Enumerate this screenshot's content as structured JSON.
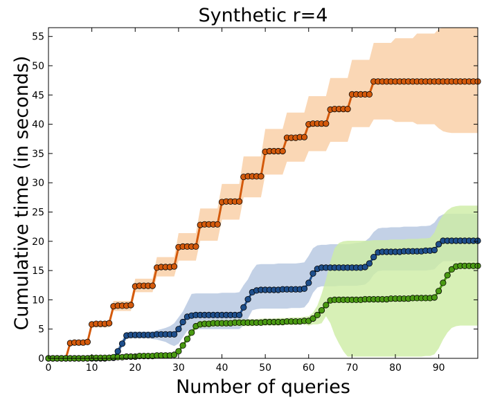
{
  "chart_data": {
    "type": "line",
    "title": "Synthetic r=4",
    "xlabel": "Number of queries",
    "ylabel": "Cumulative time (in seconds)",
    "xlim": [
      0,
      99
    ],
    "ylim": [
      0,
      56.5
    ],
    "xticks": [
      0,
      10,
      20,
      30,
      40,
      50,
      60,
      70,
      80,
      90
    ],
    "yticks": [
      0,
      5,
      10,
      15,
      20,
      25,
      30,
      35,
      40,
      45,
      50,
      55
    ],
    "grid": false,
    "x": [
      0,
      1,
      2,
      3,
      4,
      5,
      6,
      7,
      8,
      9,
      10,
      11,
      12,
      13,
      14,
      15,
      16,
      17,
      18,
      19,
      20,
      21,
      22,
      23,
      24,
      25,
      26,
      27,
      28,
      29,
      30,
      31,
      32,
      33,
      34,
      35,
      36,
      37,
      38,
      39,
      40,
      41,
      42,
      43,
      44,
      45,
      46,
      47,
      48,
      49,
      50,
      51,
      52,
      53,
      54,
      55,
      56,
      57,
      58,
      59,
      60,
      61,
      62,
      63,
      64,
      65,
      66,
      67,
      68,
      69,
      70,
      71,
      72,
      73,
      74,
      75,
      76,
      77,
      78,
      79,
      80,
      81,
      82,
      83,
      84,
      85,
      86,
      87,
      88,
      89,
      90,
      91,
      92,
      93,
      94,
      95,
      96,
      97,
      98,
      99
    ],
    "series": [
      {
        "color": "#d45a0c",
        "band_color": "#f9cda2",
        "values": [
          0,
          0,
          0,
          0,
          0,
          2.6,
          2.7,
          2.7,
          2.7,
          2.8,
          5.8,
          5.9,
          5.9,
          5.9,
          6.0,
          8.9,
          9.0,
          9.0,
          9.0,
          9.1,
          12.3,
          12.4,
          12.4,
          12.4,
          12.4,
          15.5,
          15.6,
          15.6,
          15.6,
          15.7,
          19.0,
          19.1,
          19.1,
          19.1,
          19.1,
          22.8,
          22.9,
          22.9,
          22.9,
          22.9,
          26.7,
          26.8,
          26.8,
          26.8,
          26.8,
          31.0,
          31.1,
          31.1,
          31.1,
          31.1,
          35.3,
          35.4,
          35.4,
          35.4,
          35.4,
          37.7,
          37.7,
          37.7,
          37.8,
          37.8,
          40.0,
          40.1,
          40.1,
          40.1,
          40.1,
          42.5,
          42.6,
          42.6,
          42.6,
          42.6,
          45.1,
          45.1,
          45.1,
          45.1,
          45.1,
          47.3,
          47.3,
          47.3,
          47.3,
          47.3,
          47.3,
          47.3,
          47.3,
          47.3,
          47.3,
          47.3,
          47.3,
          47.3,
          47.3,
          47.3,
          47.3,
          47.3,
          47.3,
          47.3,
          47.3,
          47.3,
          47.3,
          47.3,
          47.3,
          47.3
        ],
        "upper": [
          0,
          0,
          0,
          0,
          0,
          2.9,
          2.9,
          2.9,
          2.9,
          2.9,
          6.3,
          6.3,
          6.3,
          6.3,
          6.3,
          9.8,
          9.8,
          9.8,
          9.8,
          9.8,
          13.6,
          13.6,
          13.6,
          13.6,
          13.6,
          17.3,
          17.3,
          17.3,
          17.3,
          17.3,
          21.4,
          21.4,
          21.4,
          21.4,
          21.4,
          25.6,
          25.6,
          25.6,
          25.6,
          25.6,
          29.8,
          29.8,
          29.8,
          29.8,
          29.8,
          34.5,
          34.5,
          34.5,
          34.5,
          34.5,
          39.2,
          39.2,
          39.2,
          39.2,
          39.2,
          42.0,
          42.0,
          42.0,
          42.0,
          42.0,
          44.8,
          44.8,
          44.8,
          44.8,
          44.8,
          47.9,
          47.9,
          47.9,
          47.9,
          47.9,
          51.0,
          51.0,
          51.0,
          51.0,
          51.0,
          53.9,
          53.9,
          53.9,
          53.9,
          53.9,
          54.7,
          54.7,
          54.7,
          54.7,
          54.7,
          55.5,
          55.5,
          55.5,
          55.5,
          55.5,
          56.3,
          56.5,
          56.5,
          56.5,
          56.5,
          56.5,
          56.5,
          56.5,
          56.5,
          56.5
        ],
        "lower": [
          0,
          0,
          0,
          0,
          0,
          2.3,
          2.3,
          2.3,
          2.3,
          2.3,
          5.3,
          5.3,
          5.3,
          5.3,
          5.3,
          8.1,
          8.1,
          8.1,
          8.1,
          8.1,
          11.3,
          11.3,
          11.3,
          11.3,
          11.3,
          14.0,
          14.0,
          14.0,
          14.0,
          14.0,
          16.7,
          16.7,
          16.7,
          16.7,
          16.7,
          20.1,
          20.1,
          20.1,
          20.1,
          20.1,
          23.7,
          23.7,
          23.7,
          23.7,
          23.7,
          27.5,
          27.5,
          27.5,
          27.5,
          27.5,
          31.4,
          31.4,
          31.4,
          31.4,
          31.4,
          33.6,
          33.6,
          33.6,
          33.6,
          33.6,
          35.4,
          35.4,
          35.4,
          35.4,
          35.4,
          37.0,
          37.0,
          37.0,
          37.0,
          37.0,
          39.5,
          39.5,
          39.5,
          39.5,
          39.5,
          40.8,
          40.8,
          40.8,
          40.8,
          40.8,
          40.4,
          40.4,
          40.4,
          40.4,
          40.4,
          40.0,
          40.0,
          40.0,
          40.0,
          40.0,
          39.3,
          38.8,
          38.6,
          38.5,
          38.5,
          38.5,
          38.5,
          38.5,
          38.5,
          38.5
        ]
      },
      {
        "color": "#1f4f8c",
        "band_color": "#b4c6e0",
        "values": [
          0,
          0,
          0,
          0,
          0,
          0,
          0,
          0,
          0,
          0,
          0,
          0,
          0,
          0,
          0.1,
          0.1,
          1.2,
          2.5,
          3.9,
          4.0,
          4.0,
          4.0,
          4.0,
          4.0,
          4.0,
          4.1,
          4.1,
          4.1,
          4.1,
          4.1,
          5.0,
          6.2,
          7.1,
          7.3,
          7.4,
          7.4,
          7.4,
          7.4,
          7.4,
          7.4,
          7.4,
          7.4,
          7.4,
          7.4,
          7.4,
          8.7,
          10.1,
          11.3,
          11.6,
          11.7,
          11.7,
          11.7,
          11.7,
          11.7,
          11.8,
          11.8,
          11.8,
          11.8,
          11.8,
          11.9,
          12.9,
          14.5,
          15.3,
          15.5,
          15.5,
          15.5,
          15.5,
          15.5,
          15.5,
          15.5,
          15.5,
          15.5,
          15.5,
          15.6,
          16.2,
          17.3,
          18.1,
          18.2,
          18.2,
          18.2,
          18.2,
          18.2,
          18.3,
          18.3,
          18.3,
          18.3,
          18.3,
          18.4,
          18.4,
          18.5,
          19.5,
          20.1,
          20.1,
          20.1,
          20.1,
          20.1,
          20.1,
          20.1,
          20.1,
          20.1
        ],
        "upper": [
          0,
          0,
          0,
          0,
          0,
          0,
          0,
          0,
          0,
          0,
          0,
          0,
          0,
          0,
          0.2,
          0.3,
          1.8,
          3.2,
          4.5,
          4.6,
          4.6,
          4.6,
          4.6,
          4.6,
          4.6,
          4.8,
          5.0,
          5.2,
          5.5,
          6.0,
          7.0,
          8.0,
          9.5,
          11.0,
          11.1,
          11.1,
          11.1,
          11.1,
          11.1,
          11.1,
          11.2,
          11.2,
          11.2,
          11.2,
          11.3,
          12.5,
          13.5,
          15.0,
          16.0,
          16.1,
          16.1,
          16.1,
          16.1,
          16.2,
          16.2,
          16.2,
          16.2,
          16.2,
          16.3,
          16.4,
          17.5,
          18.8,
          19.3,
          19.4,
          19.4,
          19.5,
          19.5,
          19.5,
          19.5,
          19.5,
          19.6,
          19.7,
          19.8,
          20.0,
          20.6,
          21.6,
          22.2,
          22.3,
          22.3,
          22.4,
          22.4,
          22.4,
          22.5,
          22.5,
          22.5,
          22.5,
          22.6,
          22.6,
          22.7,
          23.2,
          24.2,
          24.6,
          24.7,
          24.7,
          24.7,
          24.7,
          24.7,
          24.7,
          24.7,
          24.7
        ],
        "lower": [
          0,
          0,
          0,
          0,
          0,
          0,
          0,
          0,
          0,
          0,
          0,
          0,
          0,
          0,
          0,
          0,
          0.7,
          1.9,
          3.3,
          3.4,
          3.4,
          3.4,
          3.4,
          3.4,
          3.3,
          3.2,
          3.0,
          2.8,
          2.4,
          2.1,
          2.5,
          3.6,
          4.7,
          4.9,
          5.0,
          5.0,
          5.0,
          5.0,
          5.0,
          5.0,
          5.0,
          5.0,
          5.0,
          5.0,
          5.0,
          5.6,
          6.8,
          8.2,
          8.4,
          8.5,
          8.5,
          8.5,
          8.5,
          8.5,
          8.5,
          8.5,
          8.6,
          8.6,
          8.6,
          8.7,
          9.6,
          11.2,
          12.1,
          12.3,
          12.3,
          12.3,
          12.3,
          12.4,
          12.4,
          12.4,
          12.4,
          12.4,
          12.5,
          12.6,
          13.2,
          14.3,
          14.9,
          15.0,
          15.0,
          15.0,
          15.0,
          15.0,
          15.0,
          15.0,
          15.0,
          15.0,
          15.0,
          15.0,
          15.1,
          15.2,
          16.0,
          16.6,
          16.6,
          16.6,
          16.6,
          16.6,
          16.6,
          16.6,
          16.6,
          16.6
        ]
      },
      {
        "color": "#4a9a12",
        "band_color": "#cdeca4",
        "values": [
          0,
          0,
          0,
          0,
          0,
          0,
          0,
          0,
          0,
          0,
          0.1,
          0.1,
          0.1,
          0.1,
          0.1,
          0.2,
          0.2,
          0.2,
          0.3,
          0.3,
          0.3,
          0.4,
          0.4,
          0.4,
          0.4,
          0.5,
          0.5,
          0.5,
          0.5,
          0.6,
          1.2,
          2.2,
          3.3,
          4.4,
          5.5,
          5.8,
          5.9,
          5.9,
          6.0,
          6.0,
          6.0,
          6.0,
          6.0,
          6.1,
          6.1,
          6.1,
          6.1,
          6.1,
          6.1,
          6.1,
          6.2,
          6.2,
          6.2,
          6.2,
          6.2,
          6.3,
          6.3,
          6.3,
          6.3,
          6.4,
          6.4,
          6.8,
          7.4,
          8.2,
          9.1,
          9.9,
          10.0,
          10.0,
          10.0,
          10.0,
          10.0,
          10.0,
          10.0,
          10.1,
          10.1,
          10.1,
          10.1,
          10.1,
          10.1,
          10.2,
          10.2,
          10.2,
          10.2,
          10.2,
          10.3,
          10.3,
          10.3,
          10.3,
          10.3,
          10.4,
          11.5,
          12.9,
          14.2,
          15.2,
          15.7,
          15.8,
          15.8,
          15.8,
          15.8,
          15.8
        ],
        "upper": [
          0,
          0,
          0,
          0,
          0,
          0,
          0,
          0,
          0,
          0,
          0.2,
          0.2,
          0.2,
          0.2,
          0.2,
          0.3,
          0.3,
          0.3,
          0.4,
          0.4,
          0.4,
          0.5,
          0.5,
          0.5,
          0.6,
          0.6,
          0.6,
          0.7,
          0.7,
          0.8,
          1.5,
          2.6,
          3.8,
          4.9,
          6.1,
          6.4,
          6.5,
          6.5,
          6.6,
          6.6,
          6.6,
          6.6,
          6.6,
          6.7,
          6.7,
          6.7,
          6.7,
          6.7,
          6.7,
          6.8,
          6.8,
          6.8,
          6.8,
          6.9,
          6.9,
          6.9,
          7.0,
          7.0,
          7.0,
          7.1,
          7.2,
          7.8,
          9.0,
          11.0,
          13.5,
          16.5,
          18.8,
          19.7,
          20.0,
          20.1,
          20.1,
          20.1,
          20.1,
          20.1,
          20.1,
          20.2,
          20.2,
          20.2,
          20.2,
          20.3,
          20.3,
          20.3,
          20.3,
          20.4,
          20.4,
          20.4,
          20.5,
          20.5,
          20.6,
          21.5,
          23.3,
          24.5,
          25.3,
          25.8,
          26.0,
          26.1,
          26.1,
          26.1,
          26.1,
          26.1
        ],
        "lower": [
          0,
          0,
          0,
          0,
          0,
          0,
          0,
          0,
          0,
          0,
          0,
          0,
          0,
          0,
          0,
          0.1,
          0.1,
          0.1,
          0.2,
          0.2,
          0.2,
          0.3,
          0.3,
          0.3,
          0.3,
          0.4,
          0.4,
          0.4,
          0.4,
          0.5,
          0.9,
          1.8,
          2.8,
          3.9,
          4.9,
          5.2,
          5.3,
          5.3,
          5.4,
          5.4,
          5.4,
          5.4,
          5.5,
          5.5,
          5.5,
          5.5,
          5.5,
          5.5,
          5.6,
          5.6,
          5.6,
          5.6,
          5.6,
          5.6,
          5.7,
          5.7,
          5.7,
          5.7,
          5.8,
          5.8,
          5.6,
          5.8,
          5.8,
          6.0,
          7.2,
          6.0,
          4.0,
          2.5,
          1.2,
          0.3,
          0.3,
          0.3,
          0.3,
          0.3,
          0.3,
          0.3,
          0.3,
          0.3,
          0.3,
          0.3,
          0.3,
          0.3,
          0.3,
          0.3,
          0.3,
          0.3,
          0.3,
          0.4,
          0.4,
          0.7,
          1.7,
          3.2,
          4.4,
          5.2,
          5.5,
          5.6,
          5.6,
          5.6,
          5.6,
          5.6
        ]
      }
    ]
  }
}
